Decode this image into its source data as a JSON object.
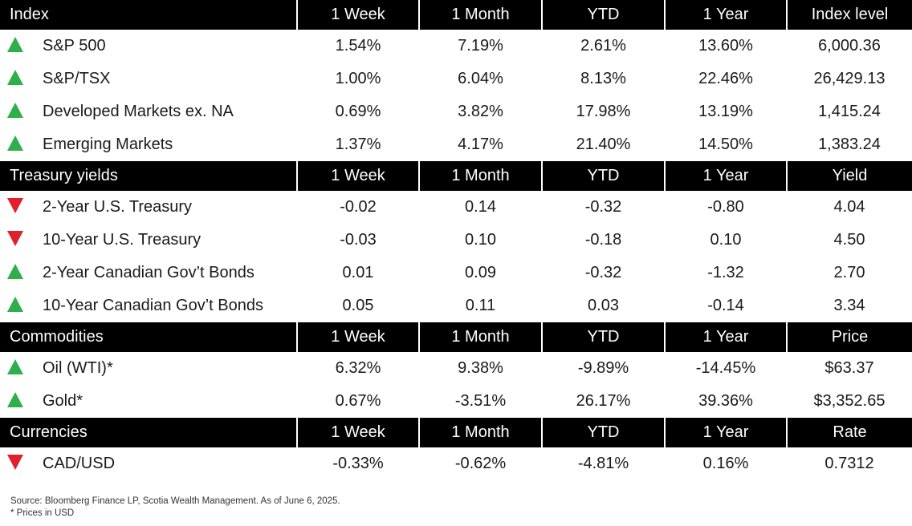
{
  "sections": [
    {
      "header": [
        "Index",
        "1 Week",
        "1 Month",
        "YTD",
        "1 Year",
        "Index level"
      ],
      "rows": [
        {
          "trend": "up",
          "name": "S&P 500",
          "values": [
            "1.54%",
            "7.19%",
            "2.61%",
            "13.60%",
            "6,000.36"
          ]
        },
        {
          "trend": "up",
          "name": "S&P/TSX",
          "values": [
            "1.00%",
            "6.04%",
            "8.13%",
            "22.46%",
            "26,429.13"
          ]
        },
        {
          "trend": "up",
          "name": "Developed Markets ex. NA",
          "values": [
            "0.69%",
            "3.82%",
            "17.98%",
            "13.19%",
            "1,415.24"
          ]
        },
        {
          "trend": "up",
          "name": "Emerging Markets",
          "values": [
            "1.37%",
            "4.17%",
            "21.40%",
            "14.50%",
            "1,383.24"
          ]
        }
      ]
    },
    {
      "header": [
        "Treasury yields",
        "1 Week",
        "1 Month",
        "YTD",
        "1 Year",
        "Yield"
      ],
      "rows": [
        {
          "trend": "down",
          "name": "2-Year U.S. Treasury",
          "values": [
            "-0.02",
            "0.14",
            "-0.32",
            "-0.80",
            "4.04"
          ]
        },
        {
          "trend": "down",
          "name": "10-Year U.S. Treasury",
          "values": [
            "-0.03",
            "0.10",
            "-0.18",
            "0.10",
            "4.50"
          ]
        },
        {
          "trend": "up",
          "name": "2-Year Canadian Gov’t Bonds",
          "values": [
            "0.01",
            "0.09",
            "-0.32",
            "-1.32",
            "2.70"
          ]
        },
        {
          "trend": "up",
          "name": "10-Year Canadian Gov’t Bonds",
          "values": [
            "0.05",
            "0.11",
            "0.03",
            "-0.14",
            "3.34"
          ]
        }
      ]
    },
    {
      "header": [
        "Commodities",
        "1 Week",
        "1 Month",
        "YTD",
        "1 Year",
        "Price"
      ],
      "rows": [
        {
          "trend": "up",
          "name": "Oil (WTI)*",
          "values": [
            "6.32%",
            "9.38%",
            "-9.89%",
            "-14.45%",
            "$63.37"
          ]
        },
        {
          "trend": "up",
          "name": "Gold*",
          "values": [
            "0.67%",
            "-3.51%",
            "26.17%",
            "39.36%",
            "$3,352.65"
          ]
        }
      ]
    },
    {
      "header": [
        "Currencies",
        "1 Week",
        "1 Month",
        "YTD",
        "1 Year",
        "Rate"
      ],
      "rows": [
        {
          "trend": "down",
          "name": "CAD/USD",
          "values": [
            "-0.33%",
            "-0.62%",
            "-4.81%",
            "0.16%",
            "0.7312"
          ]
        }
      ]
    }
  ],
  "notes": {
    "source": "Source: Bloomberg Finance LP, Scotia Wealth Management. As of June 6, 2025.",
    "prices": "* Prices in USD"
  },
  "colors": {
    "up": "#2db04b",
    "down": "#e0202a",
    "header_bg": "#000000"
  }
}
